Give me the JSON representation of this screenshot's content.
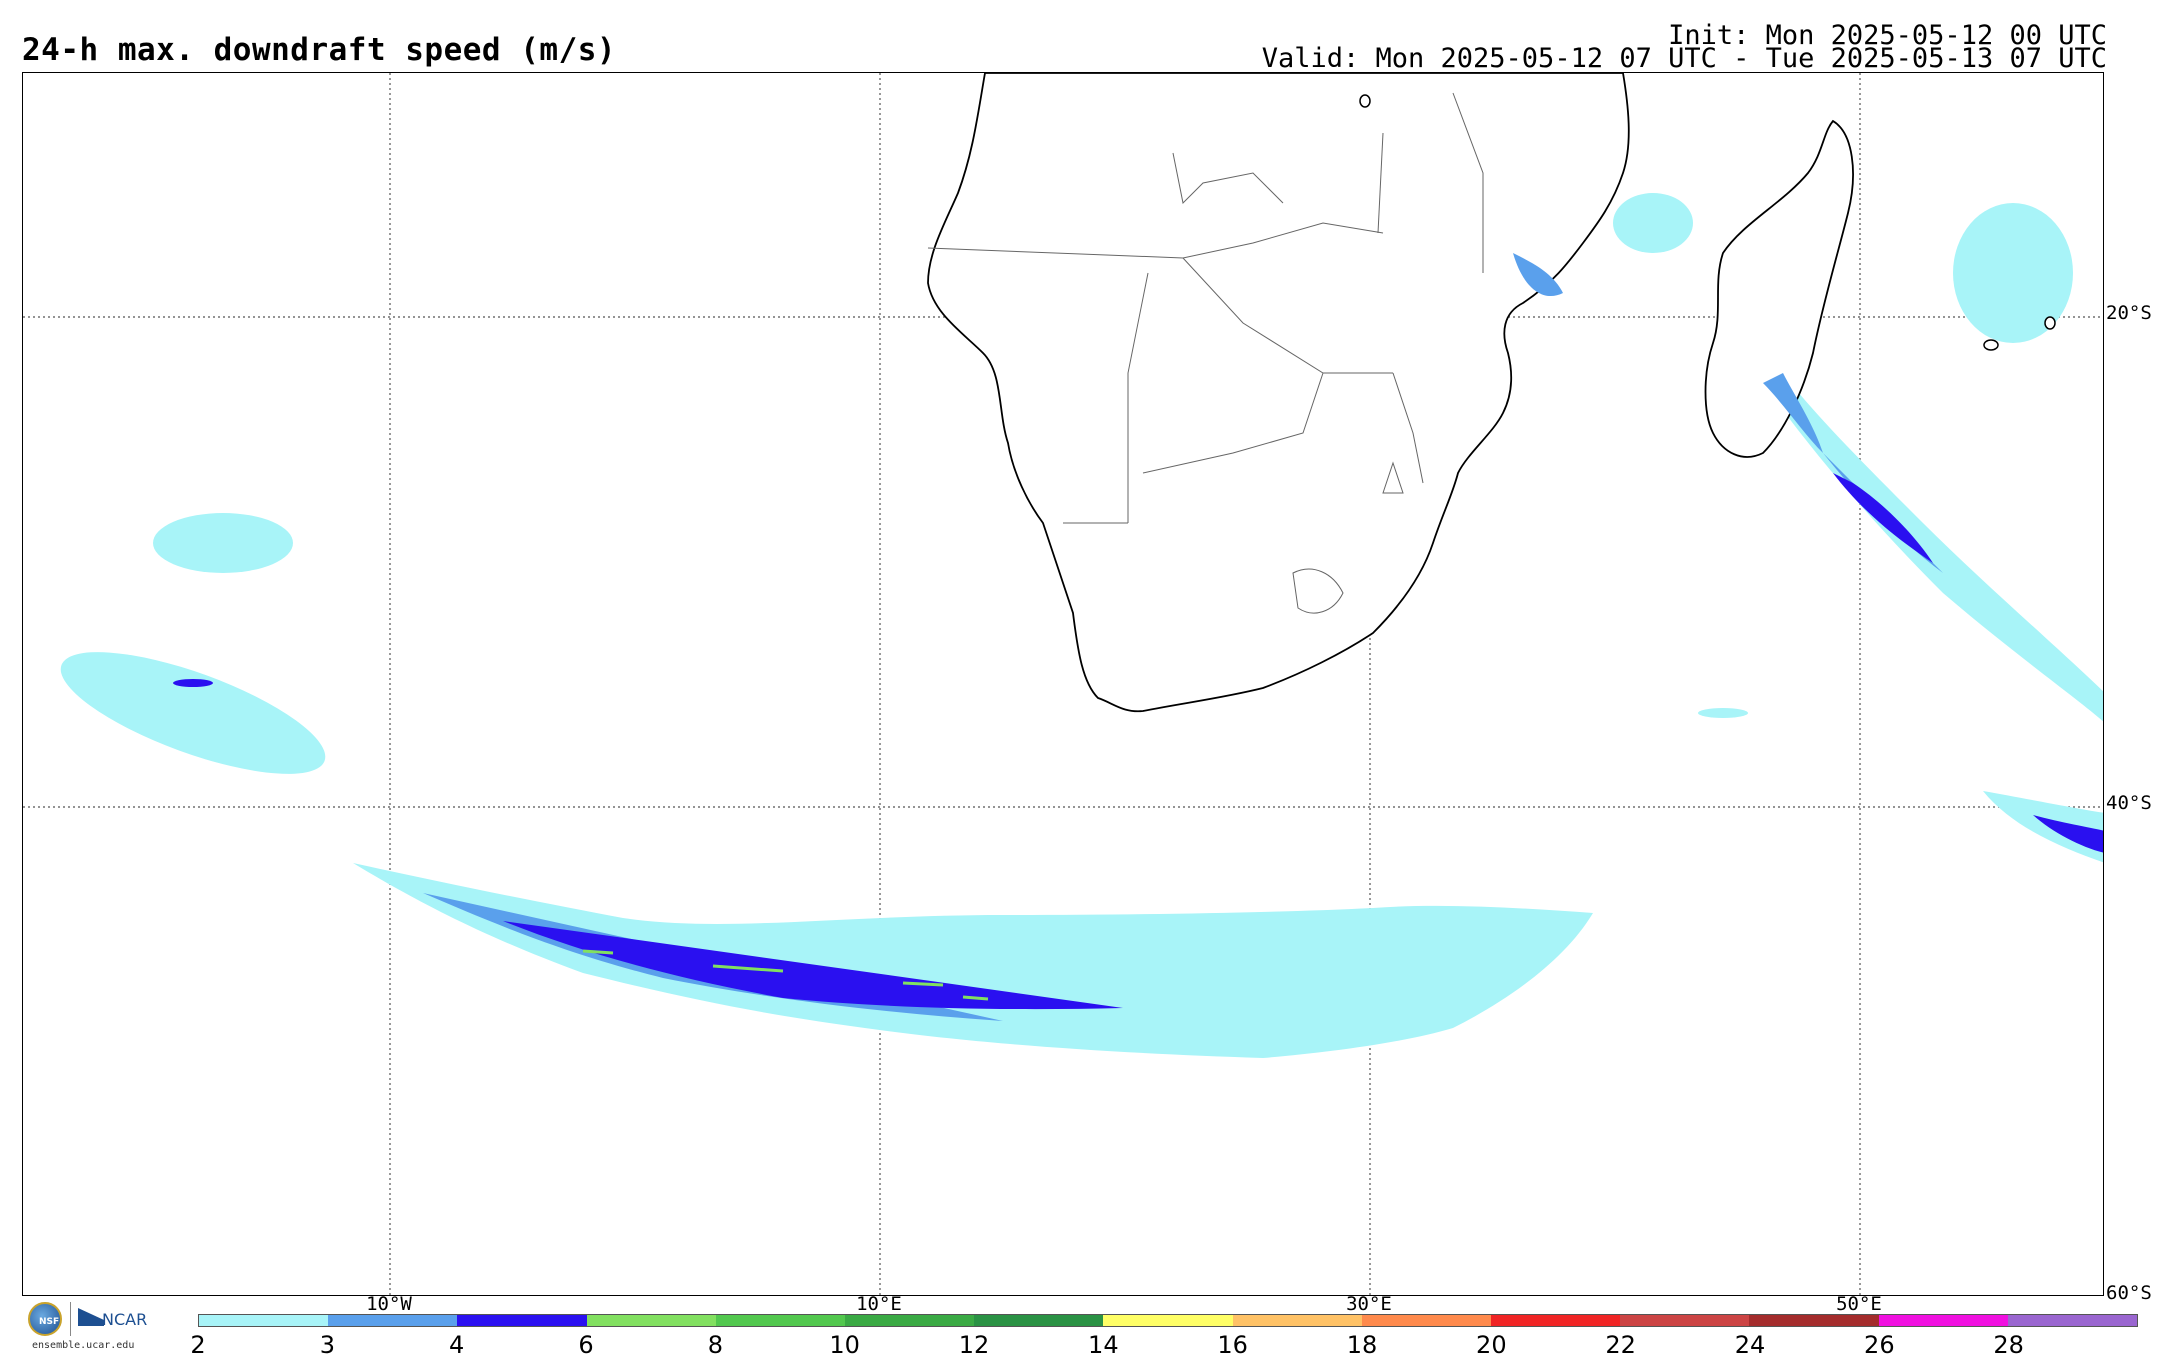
{
  "header": {
    "title": "24-h max. downdraft speed (m/s)",
    "init": "Init: Mon 2025-05-12 00 UTC",
    "valid": "Valid: Mon 2025-05-12 07 UTC - Tue 2025-05-13 07 UTC"
  },
  "axes": {
    "lat_labels": [
      "20°S",
      "40°S",
      "60°S"
    ],
    "lon_labels": [
      "10°W",
      "10°E",
      "30°E",
      "50°E"
    ]
  },
  "colorbar": {
    "labels": [
      "2",
      "3",
      "4",
      "6",
      "8",
      "10",
      "12",
      "14",
      "16",
      "18",
      "20",
      "22",
      "24",
      "26",
      "28"
    ],
    "colors": [
      "#a8f4f8",
      "#5aa0ec",
      "#2a10f0",
      "#82e060",
      "#52c84e",
      "#3aaa44",
      "#2a9244",
      "#ffff66",
      "#ffc266",
      "#ff8a4c",
      "#f02424",
      "#cc4444",
      "#a42c2c",
      "#f010e0",
      "#9a66d0"
    ]
  },
  "footer": {
    "nsf_text": "NSF",
    "ncar_text": "NCAR",
    "site": "ensemble.ucar.edu"
  }
}
